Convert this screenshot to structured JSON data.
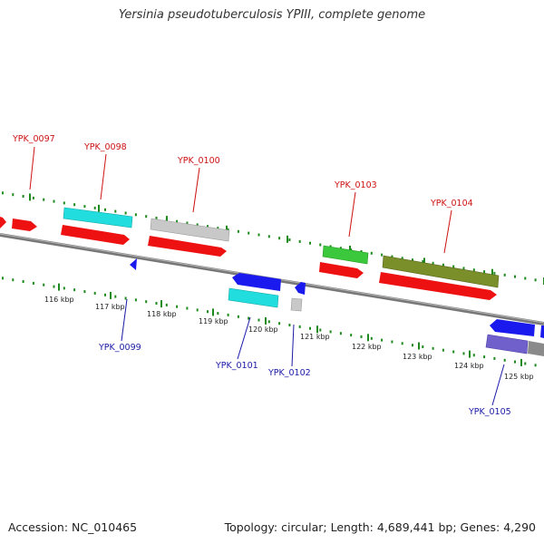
{
  "title": "Yersinia pseudotuberculosis YPIII, complete genome",
  "footer": {
    "accession": "Accession: NC_010465",
    "summary": "Topology: circular; Length: 4,689,441 bp; Genes: 4,290"
  },
  "colors": {
    "backbone": "#808080",
    "tick_green": "#1e8a1e",
    "cds": "#ee1111",
    "gene_cyan": "#22dddd",
    "gene_grey": "#c8c8c8",
    "gene_green": "#3cc83c",
    "gene_olive": "#7a8f2a",
    "gene_blue": "#1a1aee",
    "gene_purple": "#7060cc",
    "label_top": "#cc1111",
    "label_bottom": "#1a1aa6"
  },
  "scale_labels": [
    "116 kbp",
    "117 kbp",
    "118 kbp",
    "119 kbp",
    "120 kbp",
    "121 kbp",
    "122 kbp",
    "123 kbp",
    "124 kbp",
    "125 kbp"
  ],
  "top_labels": [
    "YPK_0097",
    "YPK_0098",
    "YPK_0100",
    "YPK_0103",
    "YPK_0104"
  ],
  "bottom_labels": [
    "YPK_0099",
    "YPK_0101",
    "YPK_0102",
    "YPK_0105"
  ]
}
